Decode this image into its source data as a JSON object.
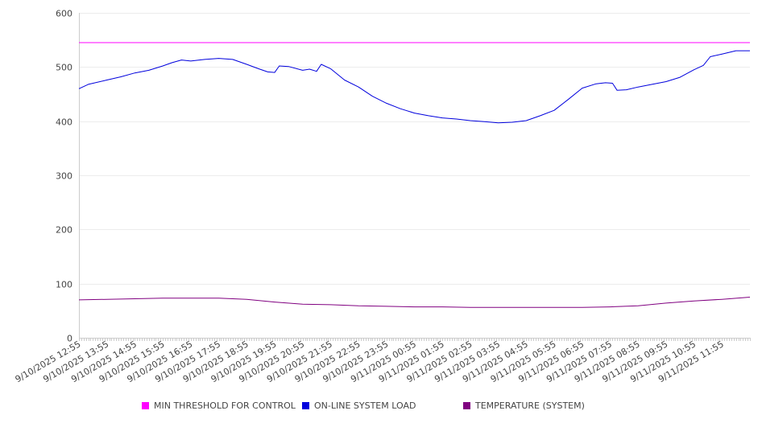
{
  "chart_data": {
    "type": "line",
    "title": "",
    "xlabel": "",
    "ylabel": "",
    "ylim": [
      0,
      600
    ],
    "y_ticks": [
      0,
      100,
      200,
      300,
      400,
      500,
      600
    ],
    "grid": "horizontal",
    "legend_position": "bottom",
    "x_start": "9/10/2025 12:55",
    "x_end": "9/11/2025 12:55",
    "x_tick_labels": [
      "9/10/2025 12:55",
      "9/10/2025 13:55",
      "9/10/2025 14:55",
      "9/10/2025 15:55",
      "9/10/2025 16:55",
      "9/10/2025 17:55",
      "9/10/2025 18:55",
      "9/10/2025 19:55",
      "9/10/2025 20:55",
      "9/10/2025 21:55",
      "9/10/2025 22:55",
      "9/10/2025 23:55",
      "9/11/2025 00:55",
      "9/11/2025 01:55",
      "9/11/2025 02:55",
      "9/11/2025 03:55",
      "9/11/2025 04:55",
      "9/11/2025 05:55",
      "9/11/2025 06:55",
      "9/11/2025 07:55",
      "9/11/2025 08:55",
      "9/11/2025 09:55",
      "9/11/2025 10:55",
      "9/11/2025 11:55"
    ],
    "series": [
      {
        "name": "MIN THRESHOLD FOR CONTROL",
        "color": "#ff00ff",
        "points": [
          [
            "9/10/2025 12:55",
            545
          ],
          [
            "9/11/2025 12:55",
            545
          ]
        ]
      },
      {
        "name": "ON-LINE SYSTEM LOAD",
        "color": "#0000dd",
        "points": [
          [
            "9/10/2025 12:55",
            460
          ],
          [
            "9/10/2025 13:15",
            468
          ],
          [
            "9/10/2025 13:55",
            476
          ],
          [
            "9/10/2025 14:25",
            482
          ],
          [
            "9/10/2025 14:55",
            489
          ],
          [
            "9/10/2025 15:25",
            494
          ],
          [
            "9/10/2025 15:55",
            502
          ],
          [
            "9/10/2025 16:15",
            508
          ],
          [
            "9/10/2025 16:35",
            513
          ],
          [
            "9/10/2025 16:55",
            511
          ],
          [
            "9/10/2025 17:25",
            514
          ],
          [
            "9/10/2025 17:55",
            516
          ],
          [
            "9/10/2025 18:25",
            514
          ],
          [
            "9/10/2025 18:55",
            505
          ],
          [
            "9/10/2025 19:20",
            497
          ],
          [
            "9/10/2025 19:40",
            491
          ],
          [
            "9/10/2025 19:55",
            490
          ],
          [
            "9/10/2025 20:05",
            502
          ],
          [
            "9/10/2025 20:25",
            501
          ],
          [
            "9/10/2025 20:55",
            494
          ],
          [
            "9/10/2025 21:10",
            496
          ],
          [
            "9/10/2025 21:25",
            492
          ],
          [
            "9/10/2025 21:35",
            505
          ],
          [
            "9/10/2025 21:55",
            497
          ],
          [
            "9/10/2025 22:25",
            476
          ],
          [
            "9/10/2025 22:55",
            463
          ],
          [
            "9/10/2025 23:25",
            446
          ],
          [
            "9/10/2025 23:55",
            433
          ],
          [
            "9/11/2025 00:25",
            423
          ],
          [
            "9/11/2025 00:55",
            415
          ],
          [
            "9/11/2025 01:25",
            410
          ],
          [
            "9/11/2025 01:55",
            406
          ],
          [
            "9/11/2025 02:25",
            404
          ],
          [
            "9/11/2025 02:55",
            401
          ],
          [
            "9/11/2025 03:25",
            399
          ],
          [
            "9/11/2025 03:55",
            397
          ],
          [
            "9/11/2025 04:25",
            398
          ],
          [
            "9/11/2025 04:55",
            401
          ],
          [
            "9/11/2025 05:25",
            410
          ],
          [
            "9/11/2025 05:55",
            420
          ],
          [
            "9/11/2025 06:25",
            440
          ],
          [
            "9/11/2025 06:55",
            461
          ],
          [
            "9/11/2025 07:25",
            469
          ],
          [
            "9/11/2025 07:45",
            471
          ],
          [
            "9/11/2025 08:00",
            470
          ],
          [
            "9/11/2025 08:10",
            457
          ],
          [
            "9/11/2025 08:30",
            458
          ],
          [
            "9/11/2025 08:55",
            463
          ],
          [
            "9/11/2025 09:25",
            468
          ],
          [
            "9/11/2025 09:55",
            473
          ],
          [
            "9/11/2025 10:25",
            481
          ],
          [
            "9/11/2025 10:55",
            495
          ],
          [
            "9/11/2025 11:15",
            503
          ],
          [
            "9/11/2025 11:30",
            519
          ],
          [
            "9/11/2025 11:55",
            524
          ],
          [
            "9/11/2025 12:25",
            530
          ],
          [
            "9/11/2025 12:55",
            530
          ]
        ]
      },
      {
        "name": "TEMPERATURE (SYSTEM)",
        "color": "#800080",
        "points": [
          [
            "9/10/2025 12:55",
            70
          ],
          [
            "9/10/2025 13:55",
            71
          ],
          [
            "9/10/2025 14:55",
            72
          ],
          [
            "9/10/2025 15:55",
            73
          ],
          [
            "9/10/2025 16:55",
            73
          ],
          [
            "9/10/2025 17:55",
            73
          ],
          [
            "9/10/2025 18:55",
            71
          ],
          [
            "9/10/2025 19:55",
            66
          ],
          [
            "9/10/2025 20:55",
            62
          ],
          [
            "9/10/2025 21:55",
            61
          ],
          [
            "9/10/2025 22:55",
            59
          ],
          [
            "9/10/2025 23:55",
            58
          ],
          [
            "9/11/2025 00:55",
            57
          ],
          [
            "9/11/2025 01:55",
            57
          ],
          [
            "9/11/2025 02:55",
            56
          ],
          [
            "9/11/2025 03:55",
            56
          ],
          [
            "9/11/2025 04:55",
            56
          ],
          [
            "9/11/2025 05:55",
            56
          ],
          [
            "9/11/2025 06:55",
            56
          ],
          [
            "9/11/2025 07:55",
            57
          ],
          [
            "9/11/2025 08:55",
            59
          ],
          [
            "9/11/2025 09:55",
            64
          ],
          [
            "9/11/2025 10:55",
            68
          ],
          [
            "9/11/2025 11:55",
            71
          ],
          [
            "9/11/2025 12:55",
            75
          ]
        ]
      }
    ]
  }
}
